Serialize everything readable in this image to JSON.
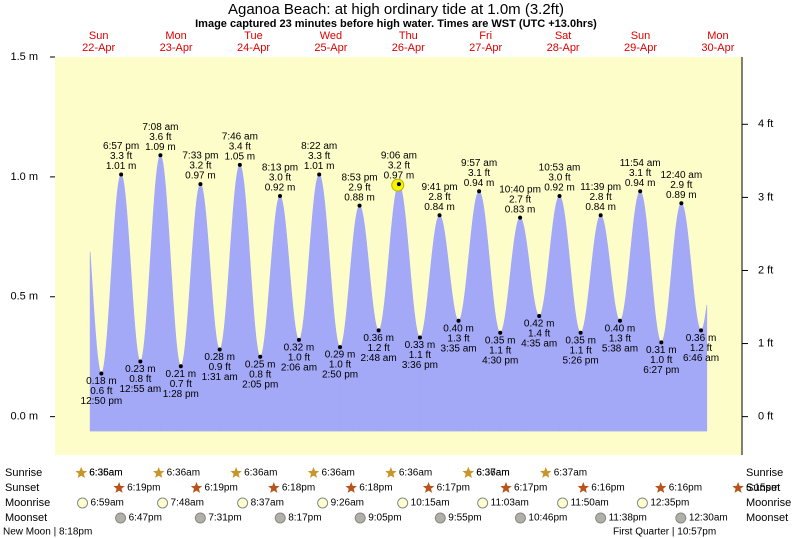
{
  "chart_data": {
    "type": "area",
    "title": "Aganoa Beach: at high  ordinary tide at 1.0m (3.2ft)",
    "subtitle": "Image captured 23 minutes before high water. Times are WST (UTC +13.0hrs)",
    "weekdays": [
      "Sun",
      "Mon",
      "Tue",
      "Wed",
      "Thu",
      "Fri",
      "Sat",
      "Sun",
      "Mon"
    ],
    "dates": [
      "22-Apr",
      "23-Apr",
      "24-Apr",
      "25-Apr",
      "26-Apr",
      "27-Apr",
      "28-Apr",
      "29-Apr",
      "30-Apr"
    ],
    "x": [
      "12:50 pm",
      "6:57 pm",
      "12:55 am",
      "7:08 am",
      "1:28 pm",
      "7:33 pm",
      "1:31 am",
      "7:46 am",
      "2:05 pm",
      "8:13 pm",
      "2:06 am",
      "8:22 am",
      "2:50 pm",
      "8:53 pm",
      "2:48 am",
      "9:06 am",
      "3:36 pm",
      "9:41 pm",
      "3:35 am",
      "9:57 am",
      "4:30 pm",
      "10:40 pm",
      "4:35 am",
      "10:53 am",
      "5:26 pm",
      "11:39 pm",
      "5:38 am",
      "11:54 am",
      "6:27 pm",
      "12:40 am",
      "6:46 am"
    ],
    "values": [
      0.18,
      1.01,
      0.23,
      1.09,
      0.21,
      0.97,
      0.28,
      1.05,
      0.25,
      0.92,
      0.32,
      1.01,
      0.29,
      0.88,
      0.36,
      0.97,
      0.33,
      0.84,
      0.4,
      0.94,
      0.35,
      0.83,
      0.42,
      0.92,
      0.35,
      0.84,
      0.4,
      0.94,
      0.31,
      0.89,
      0.36
    ],
    "value_labels": [
      "0.18 m",
      "1.01 m",
      "0.23 m",
      "1.09 m",
      "0.21 m",
      "0.97 m",
      "0.28 m",
      "1.05 m",
      "0.25 m",
      "0.92 m",
      "0.32 m",
      "1.01 m",
      "0.29 m",
      "0.88 m",
      "0.36 m",
      "0.97 m",
      "0.33 m",
      "0.84 m",
      "0.40 m",
      "0.94 m",
      "0.35 m",
      "0.83 m",
      "0.42 m",
      "0.92 m",
      "0.35 m",
      "0.84 m",
      "0.40 m",
      "0.94 m",
      "0.31 m",
      "0.89 m",
      "0.36 m"
    ],
    "ft_labels": [
      "0.6 ft",
      "3.3 ft",
      "0.8 ft",
      "3.6 ft",
      "0.7 ft",
      "3.2 ft",
      "0.9 ft",
      "3.4 ft",
      "0.8 ft",
      "3.0 ft",
      "1.0 ft",
      "3.3 ft",
      "1.0 ft",
      "2.9 ft",
      "1.2 ft",
      "3.2 ft",
      "1.1 ft",
      "2.8 ft",
      "1.3 ft",
      "3.1 ft",
      "1.1 ft",
      "2.7 ft",
      "1.4 ft",
      "3.0 ft",
      "1.1 ft",
      "2.8 ft",
      "1.3 ft",
      "3.1 ft",
      "1.0 ft",
      "2.9 ft",
      "1.2 ft"
    ],
    "color": "#a3a8f7",
    "ylim": [
      -0.16,
      1.5
    ],
    "yticks": [
      {
        "value": 0,
        "label": "0.0 m"
      },
      {
        "value": 0.5,
        "label": "0.5 m"
      },
      {
        "value": 1,
        "label": "1.0 m"
      },
      {
        "value": 1.5,
        "label": "1.5 m"
      }
    ],
    "y2lim": [
      -0.525,
      4.921
    ],
    "y2ticks": [
      {
        "value": 0,
        "label": "0 ft"
      },
      {
        "value": 1,
        "label": "1 ft"
      },
      {
        "value": 2,
        "label": "2 ft"
      },
      {
        "value": 3,
        "label": "3 ft"
      },
      {
        "value": 4,
        "label": "4 ft"
      }
    ]
  },
  "astronomy": {
    "row_labels": {
      "sunrise": "Sunrise",
      "sunset": "Sunset",
      "moonrise": "Moonrise",
      "moonset": "Moonset"
    },
    "sunrise": [
      "6:35am",
      "6:36am",
      "6:36am",
      "6:36am",
      "6:36am",
      "6:36am",
      "6:36am",
      "6:37am",
      "6:37am"
    ],
    "sunset": [
      "6:19pm",
      "6:19pm",
      "6:18pm",
      "6:18pm",
      "6:17pm",
      "6:17pm",
      "6:16pm",
      "6:16pm",
      "6:15pm"
    ],
    "moonrise": [
      "6:59am",
      "7:48am",
      "8:37am",
      "9:26am",
      "10:15am",
      "11:03am",
      "11:50am",
      "12:35pm"
    ],
    "moonset": [
      "6:47pm",
      "7:31pm",
      "8:17pm",
      "9:05pm",
      "9:55pm",
      "10:46pm",
      "11:38pm",
      "12:30am"
    ],
    "moon_phases": [
      "New Moon | 8:18pm",
      "First Quarter | 10:57pm"
    ]
  }
}
